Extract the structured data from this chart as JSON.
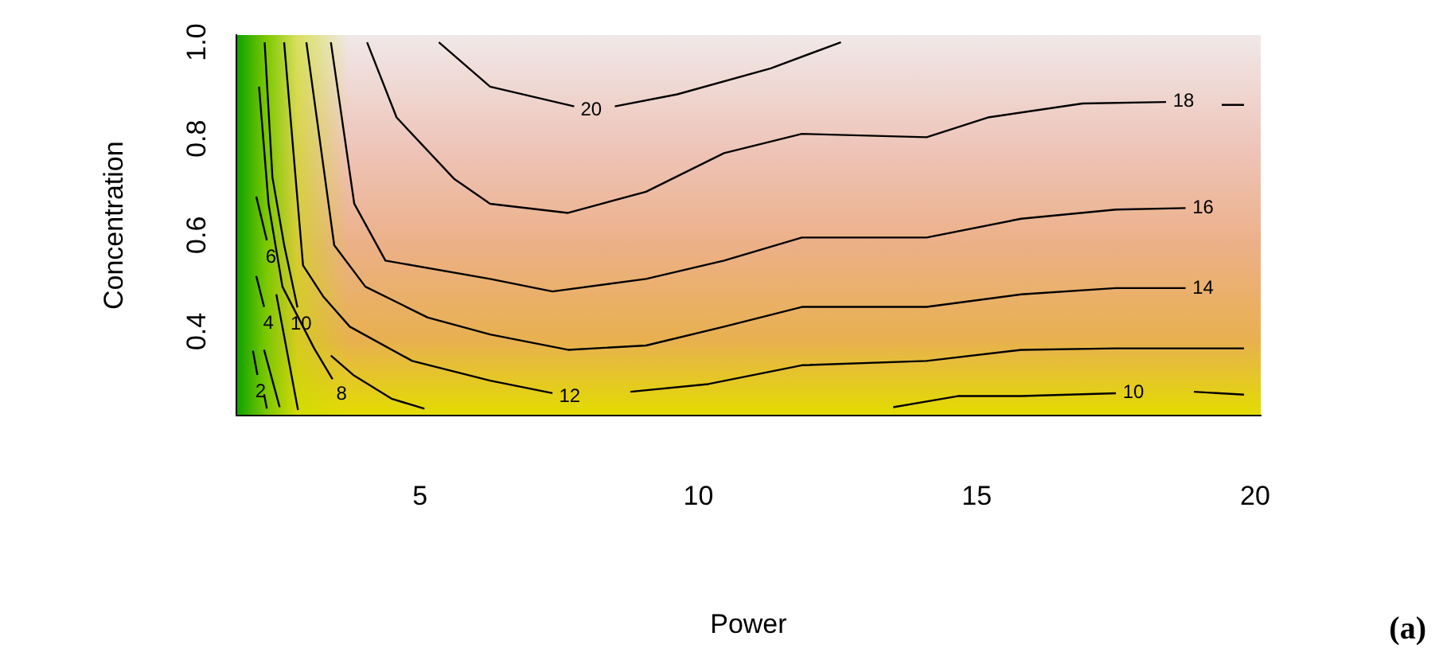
{
  "chart_data": {
    "type": "line",
    "xlabel": "Power",
    "ylabel": "Concentration",
    "xlim": [
      1.7,
      20.1
    ],
    "ylim": [
      0.225,
      1.015
    ],
    "xticks": [
      5,
      10,
      15,
      20
    ],
    "yticks": [
      0.4,
      0.6,
      0.8,
      {
        "value": 1,
        "label": "1.0"
      }
    ],
    "grid": false,
    "legend": false,
    "marker": "none",
    "line_style": "solid",
    "annotations": [
      "(a)"
    ],
    "series": [
      {
        "name": "20",
        "color": "#000000",
        "x": [
          5.34,
          6.26,
          7.77
        ],
        "values": [
          1.0,
          0.908,
          0.867
        ]
      },
      {
        "color": "#000000",
        "x": [
          8.5,
          9.62,
          11.3,
          12.56
        ],
        "values": [
          0.867,
          0.892,
          0.946,
          1.0
        ]
      },
      {
        "name": "18",
        "color": "#000000",
        "x": [
          4.05,
          4.58,
          5.62,
          6.26,
          7.66,
          9.06,
          10.46,
          11.86,
          14.1,
          15.2,
          16.9,
          18.4
        ],
        "values": [
          1.0,
          0.844,
          0.716,
          0.665,
          0.646,
          0.69,
          0.77,
          0.81,
          0.803,
          0.844,
          0.873,
          0.876
        ]
      },
      {
        "color": "#000000",
        "x": [
          19.4,
          19.8
        ],
        "values": [
          0.87,
          0.87
        ]
      },
      {
        "name": "16",
        "color": "#000000",
        "x": [
          3.4,
          3.82,
          4.38,
          6.26,
          7.38,
          9.06,
          10.46,
          11.86,
          14.1,
          15.8,
          17.5,
          18.75
        ],
        "values": [
          1.0,
          0.665,
          0.547,
          0.509,
          0.483,
          0.509,
          0.547,
          0.595,
          0.595,
          0.634,
          0.653,
          0.656
        ]
      },
      {
        "name": "14",
        "color": "#000000",
        "x": [
          2.96,
          3.46,
          4.02,
          5.14,
          6.26,
          7.66,
          9.06,
          10.46,
          11.86,
          14.1,
          15.8,
          17.5,
          18.75
        ],
        "values": [
          1.0,
          0.579,
          0.493,
          0.429,
          0.394,
          0.362,
          0.371,
          0.41,
          0.451,
          0.451,
          0.477,
          0.49,
          0.49
        ]
      },
      {
        "name": "12",
        "color": "#000000",
        "x": [
          2.56,
          2.9,
          3.26,
          3.74,
          4.86,
          6.26,
          7.38
        ],
        "values": [
          1.0,
          0.537,
          0.473,
          0.41,
          0.339,
          0.298,
          0.272
        ]
      },
      {
        "color": "#000000",
        "x": [
          8.78,
          10.18,
          11.86,
          14.1,
          15.8,
          17.5,
          19.8
        ],
        "values": [
          0.275,
          0.291,
          0.33,
          0.339,
          0.362,
          0.365,
          0.365
        ]
      },
      {
        "name": "10",
        "color": "#000000",
        "x": [
          2.21,
          2.35,
          2.56,
          2.8
        ],
        "values": [
          1.0,
          0.72,
          0.58,
          0.45
        ]
      },
      {
        "color": "#000000",
        "x": [
          3.4,
          3.8,
          4.5,
          5.08
        ],
        "values": [
          0.35,
          0.31,
          0.26,
          0.24
        ]
      },
      {
        "name": "10",
        "color": "#000000",
        "x": [
          13.5,
          14.66,
          15.8,
          17.5
        ],
        "values": [
          0.243,
          0.266,
          0.266,
          0.272
        ]
      },
      {
        "color": "#000000",
        "x": [
          18.9,
          19.8
        ],
        "values": [
          0.275,
          0.269
        ]
      },
      {
        "name": "8",
        "color": "#000000",
        "x": [
          2.11,
          2.28,
          2.53,
          3.1,
          3.43
        ],
        "values": [
          0.908,
          0.665,
          0.493,
          0.365,
          0.301
        ]
      },
      {
        "name": "6",
        "color": "#000000",
        "x": [
          2.06,
          2.25
        ],
        "values": [
          0.68,
          0.589
        ]
      },
      {
        "color": "#000000",
        "x": [
          2.42,
          2.81
        ],
        "values": [
          0.477,
          0.237
        ]
      },
      {
        "name": "4",
        "color": "#000000",
        "x": [
          2.06,
          2.2
        ],
        "values": [
          0.515,
          0.451
        ]
      },
      {
        "color": "#000000",
        "x": [
          2.2,
          2.48
        ],
        "values": [
          0.362,
          0.243
        ]
      },
      {
        "name": "2",
        "color": "#000000",
        "x": [
          2.0,
          2.08
        ],
        "values": [
          0.36,
          0.31
        ]
      },
      {
        "color": "#000000",
        "x": [
          2.2,
          2.25
        ],
        "values": [
          0.27,
          0.24
        ]
      }
    ]
  }
}
